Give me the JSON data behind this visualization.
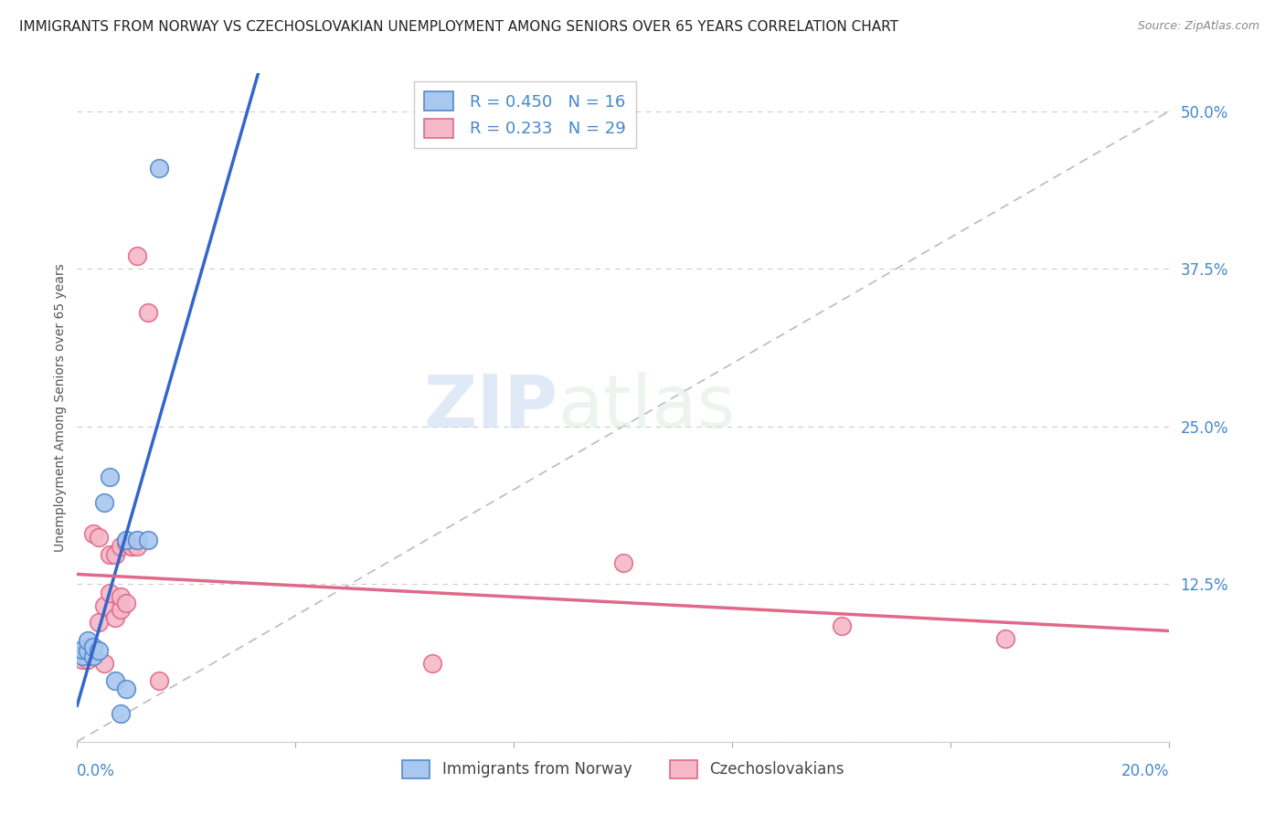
{
  "title": "IMMIGRANTS FROM NORWAY VS CZECHOSLOVAKIAN UNEMPLOYMENT AMONG SENIORS OVER 65 YEARS CORRELATION CHART",
  "source": "Source: ZipAtlas.com",
  "ylabel": "Unemployment Among Seniors over 65 years",
  "yticks": [
    0.0,
    0.125,
    0.25,
    0.375,
    0.5
  ],
  "ytick_labels": [
    "",
    "12.5%",
    "25.0%",
    "37.5%",
    "50.0%"
  ],
  "xmin": 0.0,
  "xmax": 0.2,
  "ymin": 0.0,
  "ymax": 0.53,
  "norway_color": "#a8c8f0",
  "norway_edge_color": "#5588cc",
  "czech_color": "#f5b8c8",
  "czech_edge_color": "#e06888",
  "norway_line_color": "#3366cc",
  "czech_line_color": "#e06888",
  "diag_line_color": "#bbbbbb",
  "norway_R": 0.45,
  "norway_N": 16,
  "czech_R": 0.233,
  "czech_N": 29,
  "norway_x": [
    0.001,
    0.001,
    0.002,
    0.002,
    0.003,
    0.003,
    0.004,
    0.005,
    0.006,
    0.007,
    0.008,
    0.009,
    0.009,
    0.011,
    0.013,
    0.015
  ],
  "norway_y": [
    0.068,
    0.073,
    0.072,
    0.08,
    0.068,
    0.075,
    0.072,
    0.19,
    0.21,
    0.048,
    0.022,
    0.16,
    0.042,
    0.16,
    0.16,
    0.455
  ],
  "czech_x": [
    0.001,
    0.001,
    0.002,
    0.002,
    0.003,
    0.003,
    0.004,
    0.004,
    0.005,
    0.005,
    0.006,
    0.006,
    0.007,
    0.007,
    0.008,
    0.008,
    0.008,
    0.009,
    0.009,
    0.01,
    0.01,
    0.011,
    0.011,
    0.013,
    0.015,
    0.065,
    0.1,
    0.14,
    0.17
  ],
  "czech_y": [
    0.065,
    0.07,
    0.065,
    0.075,
    0.068,
    0.165,
    0.095,
    0.162,
    0.062,
    0.108,
    0.118,
    0.148,
    0.098,
    0.148,
    0.105,
    0.155,
    0.115,
    0.11,
    0.158,
    0.155,
    0.155,
    0.155,
    0.385,
    0.34,
    0.048,
    0.062,
    0.142,
    0.092,
    0.082
  ],
  "watermark_zip": "ZIP",
  "watermark_atlas": "atlas",
  "marker_size": 200,
  "background_color": "#ffffff",
  "grid_color": "#cccccc",
  "tick_color": "#4488cc",
  "title_fontsize": 11,
  "axis_label_fontsize": 10,
  "xtick_positions": [
    0.0,
    0.04,
    0.08,
    0.12,
    0.16,
    0.2
  ]
}
